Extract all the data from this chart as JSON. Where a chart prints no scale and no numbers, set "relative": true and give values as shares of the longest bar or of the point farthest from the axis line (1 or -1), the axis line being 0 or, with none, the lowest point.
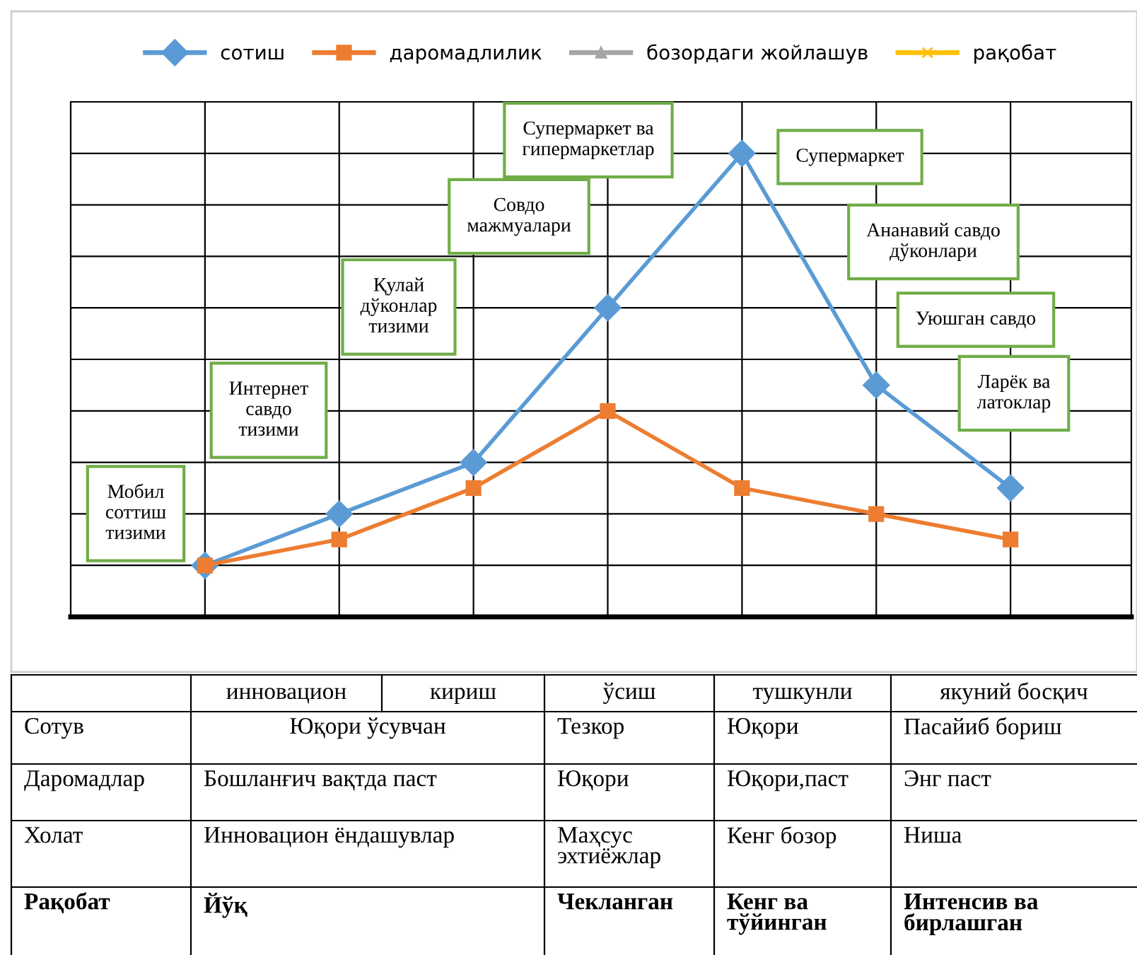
{
  "chart_data": {
    "type": "line",
    "relative": true,
    "grid": true,
    "legend": "top",
    "line_style": "solid",
    "categories": [
      null,
      null,
      null,
      null,
      null,
      null,
      null
    ],
    "series": [
      {
        "name": "сотиш",
        "color": "#5b9bd5",
        "marker": "diamond",
        "values": [
          0.111,
          0.222,
          0.333,
          0.667,
          1,
          0.5,
          0.278
        ]
      },
      {
        "name": "даромадлилик",
        "color": "#ed7d31",
        "marker": "square",
        "values": [
          0.111,
          0.167,
          0.278,
          0.444,
          0.278,
          0.222,
          0.167
        ]
      },
      {
        "name": "бозордаги жойлашув",
        "color": "#a5a5a5",
        "marker": "triangle",
        "values": [
          null,
          null,
          null,
          null,
          null,
          null,
          null
        ]
      },
      {
        "name": "рақобат",
        "color": "#ffc000",
        "marker": "cross",
        "values": [
          null,
          null,
          null,
          null,
          null,
          null,
          null
        ]
      }
    ],
    "annotations": [
      "Мобил\nсоттиш\nтизими",
      "Интернет\nсавдо\nтизими",
      "Қулай\nдўконлар\nтизими",
      "Совдо\nмажмуалари",
      "Супермаркет ва\nгипермаркетлар",
      "Супермаркет",
      "Ананавий савдо\nдўконлари",
      "Уюшган савдо",
      "Ларёк ва\nлатоклар",
      "инновацион",
      "кириш",
      "ўсиш",
      "тушкунли",
      "якуний босқич",
      "Сотув",
      "Юқори ўсувчан",
      "Тезкор",
      "Юқори",
      "Пасайиб бориш",
      "Даромадлар",
      "Бошланғич вақтда паст",
      "Юқори",
      "Юқори,паст",
      "Энг паст",
      "Холат",
      "Инновацион ёндашувлар",
      "Маҳсус\nэхтиёжлар",
      "Кенг бозор",
      "Ниша",
      "Рақобат",
      "Йўқ",
      "Чекланган",
      "Кенг ва\nтўйинган",
      "Интенсив ва\nбирлашган"
    ]
  }
}
